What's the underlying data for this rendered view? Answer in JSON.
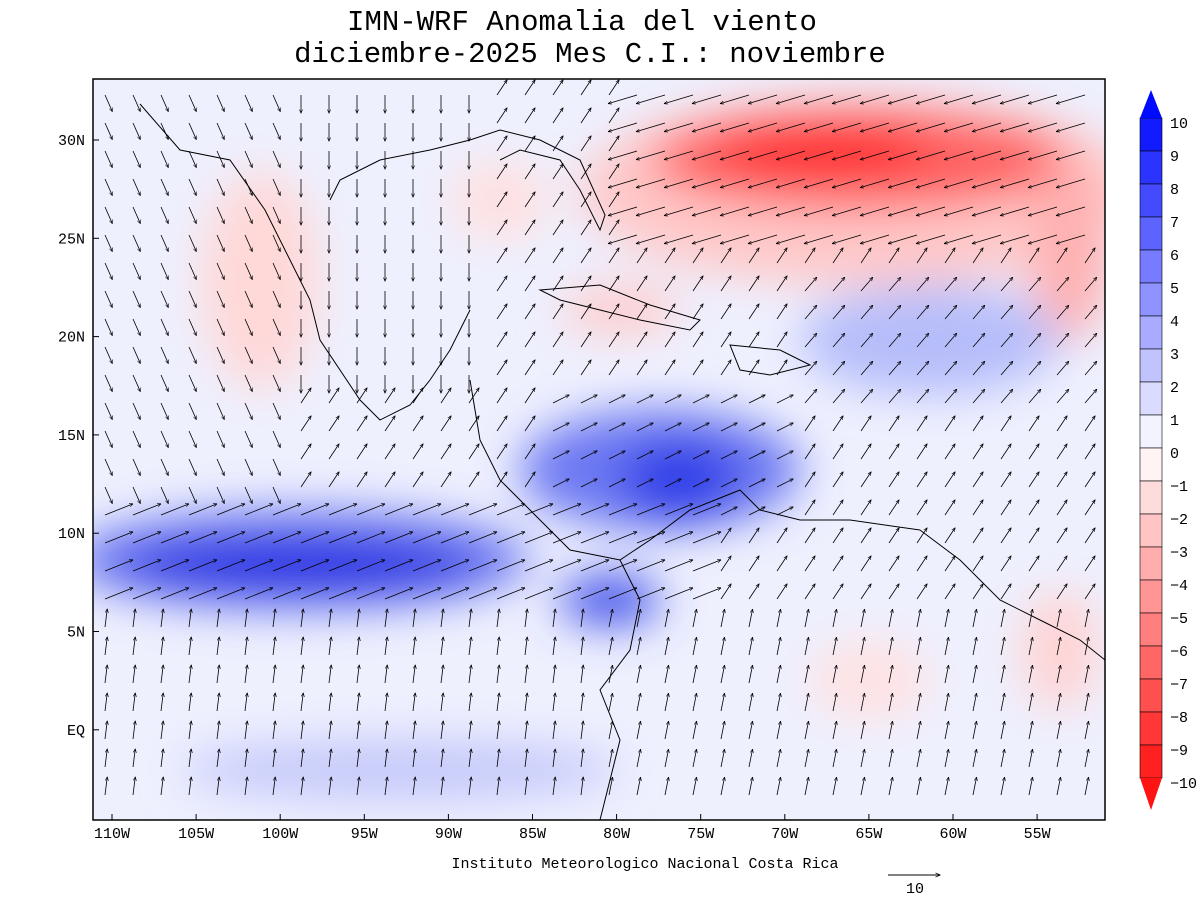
{
  "header": {
    "title": "IMN-WRF Anomalia del viento",
    "subtitle": "diciembre-2025 Mes C.I.: noviembre"
  },
  "map": {
    "lon_labels": [
      "110W",
      "105W",
      "100W",
      "95W",
      "90W",
      "85W",
      "80W",
      "75W",
      "70W",
      "65W",
      "60W",
      "55W"
    ],
    "lat_labels": [
      "30N",
      "25N",
      "20N",
      "15N",
      "10N",
      "5N",
      "EQ"
    ],
    "footer": "Instituto Meteorologico Nacional Costa Rica",
    "reference_vector": "10"
  },
  "colorbar": {
    "labels": [
      "10",
      "9",
      "8",
      "7",
      "6",
      "5",
      "4",
      "3",
      "2",
      "1",
      "0",
      "−1",
      "−2",
      "−3",
      "−4",
      "−5",
      "−6",
      "−7",
      "−8",
      "−9",
      "−10"
    ]
  }
}
